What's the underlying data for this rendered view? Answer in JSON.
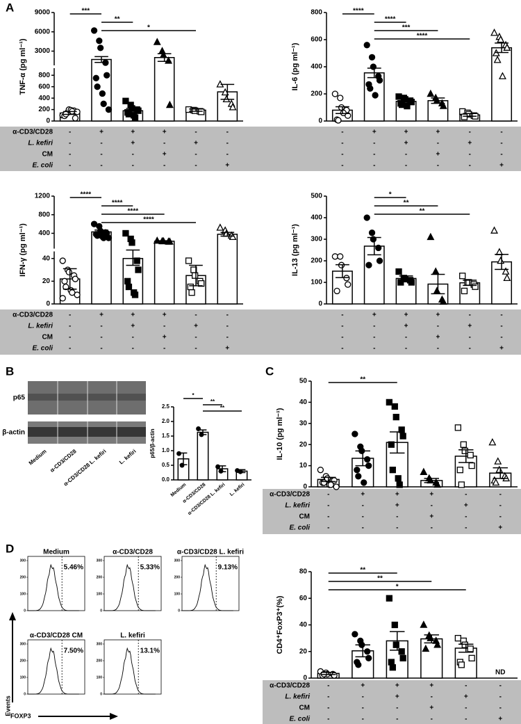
{
  "panel_labels": [
    "A",
    "B",
    "C",
    "D"
  ],
  "condition_rows": [
    {
      "label": "α-CD3/CD28",
      "signs": [
        "-",
        "+",
        "+",
        "+",
        "-",
        "-"
      ]
    },
    {
      "label": "L. kefiri",
      "signs": [
        "-",
        "-",
        "+",
        "-",
        "+",
        "-"
      ]
    },
    {
      "label": "CM",
      "signs": [
        "-",
        "-",
        "-",
        "+",
        "-",
        "-"
      ]
    },
    {
      "label": "E. coli",
      "signs": [
        "-",
        "-",
        "-",
        "-",
        "-",
        "+"
      ]
    }
  ],
  "blot": {
    "rows": [
      "p65",
      "β-actin"
    ],
    "lanes": [
      "Medium",
      "α-CD3/CD28",
      "α-CD3/CD28 L. kefiri",
      "L. kefiri"
    ]
  },
  "flow": {
    "panels": [
      {
        "title": "Medium",
        "percent": "5.46%"
      },
      {
        "title": "α-CD3/CD28",
        "percent": "5.33%"
      },
      {
        "title": "α-CD3/CD28 L. kefiri",
        "percent": "9.13%"
      },
      {
        "title": "α-CD3/CD28 CM",
        "percent": "7.50%"
      },
      {
        "title": "L. kefiri",
        "percent": "13.1%"
      }
    ],
    "yticks": [
      0,
      100,
      200,
      300
    ],
    "y_label": "Events",
    "x_label": "FOXP3"
  },
  "chart_data": [
    {
      "type": "bar",
      "y_label": "TNF-α (pg ml⁻¹)",
      "categories": [
        null,
        null,
        null,
        null,
        null,
        null
      ],
      "ylim": [
        0,
        9000
      ],
      "ysegments": [
        [
          0,
          900
        ],
        [
          1000,
          9000
        ]
      ],
      "yticks": [
        0,
        200,
        400,
        600,
        800,
        3000,
        6000,
        9000
      ],
      "means": [
        140,
        1700,
        180,
        2000,
        190,
        510
      ],
      "errors": [
        25,
        450,
        40,
        600,
        20,
        130
      ],
      "points": [
        [
          100,
          150,
          200,
          180,
          50,
          90,
          120,
          190,
          170,
          160
        ],
        [
          6200,
          4600,
          3500,
          1200,
          800,
          750,
          600,
          480,
          300,
          200
        ],
        [
          350,
          280,
          220,
          200,
          180,
          150,
          120,
          100,
          60
        ],
        [
          4400,
          3000,
          2400,
          1500,
          280
        ],
        [
          200,
          190,
          180,
          170,
          160
        ],
        [
          640,
          500,
          380,
          300,
          240
        ]
      ],
      "markers": [
        "open-circle",
        "circle",
        "square",
        "triangle",
        "open-square",
        "open-triangle"
      ],
      "significance": [
        {
          "from": 0,
          "to": 1,
          "label": "***"
        },
        {
          "from": 1,
          "to": 2,
          "label": "**"
        },
        {
          "from": 1,
          "to": 4,
          "label": "*"
        }
      ]
    },
    {
      "type": "bar",
      "y_label": "IL-6 (pg ml⁻¹)",
      "categories": [
        null,
        null,
        null,
        null,
        null,
        null
      ],
      "ylim": [
        0,
        800
      ],
      "yticks": [
        0,
        200,
        400,
        600,
        800
      ],
      "means": [
        80,
        355,
        145,
        150,
        45,
        540
      ],
      "errors": [
        25,
        35,
        15,
        20,
        10,
        35
      ],
      "points": [
        [
          200,
          170,
          100,
          80,
          40,
          10,
          5,
          60
        ],
        [
          560,
          470,
          400,
          330,
          300,
          270,
          240,
          190
        ],
        [
          180,
          170,
          160,
          150,
          140,
          130,
          120,
          110
        ],
        [
          200,
          170,
          150,
          130,
          110
        ],
        [
          70,
          60,
          50,
          40,
          35,
          30
        ],
        [
          650,
          620,
          600,
          560,
          540,
          500,
          450,
          330
        ]
      ],
      "markers": [
        "open-circle",
        "circle",
        "square",
        "triangle",
        "open-square",
        "open-triangle"
      ],
      "significance": [
        {
          "from": 0,
          "to": 1,
          "label": "****"
        },
        {
          "from": 1,
          "to": 2,
          "label": "****"
        },
        {
          "from": 1,
          "to": 3,
          "label": "***"
        },
        {
          "from": 1,
          "to": 4,
          "label": "****"
        }
      ]
    },
    {
      "type": "bar",
      "y_label": "IFN-γ (pg ml⁻¹)",
      "categories": [
        null,
        null,
        null,
        null,
        null,
        null
      ],
      "ylim": [
        0,
        1200
      ],
      "ysegments": [
        [
          0,
          45
        ],
        [
          100,
          1200
        ]
      ],
      "yticks": [
        0,
        20,
        40,
        400,
        800,
        1200
      ],
      "means": [
        22,
        430,
        40,
        230,
        25,
        380
      ],
      "errors": [
        9,
        40,
        6,
        10,
        9,
        40
      ],
      "points": [
        [
          38,
          30,
          28,
          25,
          22,
          20,
          15,
          12,
          10,
          8,
          5
        ],
        [
          600,
          550,
          450,
          420,
          400,
          380,
          350,
          330,
          300,
          300
        ],
        [
          400,
          280,
          200,
          38,
          30,
          20,
          15,
          10,
          8
        ],
        [
          240,
          230,
          230,
          220,
          220
        ],
        [
          38,
          30,
          25,
          20,
          18,
          15,
          10
        ],
        [
          520,
          460,
          390,
          350,
          320
        ]
      ],
      "markers": [
        "open-circle",
        "circle",
        "square",
        "triangle",
        "open-square",
        "open-triangle"
      ],
      "significance": [
        {
          "from": 0,
          "to": 1,
          "label": "****"
        },
        {
          "from": 1,
          "to": 2,
          "label": "****"
        },
        {
          "from": 1,
          "to": 3,
          "label": "****"
        },
        {
          "from": 1,
          "to": 4,
          "label": "****"
        }
      ]
    },
    {
      "type": "bar",
      "y_label": "IL-13 (pg ml⁻¹)",
      "categories": [
        null,
        null,
        null,
        null,
        null,
        null
      ],
      "ylim": [
        0,
        500
      ],
      "yticks": [
        0,
        100,
        200,
        300,
        400,
        500
      ],
      "means": [
        152,
        268,
        118,
        92,
        98,
        195
      ],
      "errors": [
        30,
        40,
        12,
        45,
        12,
        35
      ],
      "points": [
        [
          220,
          220,
          180,
          120,
          90,
          60
        ],
        [
          400,
          330,
          300,
          260,
          200,
          180
        ],
        [
          150,
          120,
          115,
          110,
          100,
          100
        ],
        [
          310,
          150,
          60,
          20,
          10
        ],
        [
          130,
          100,
          100,
          90,
          80,
          60
        ],
        [
          340,
          240,
          200,
          150,
          120
        ]
      ],
      "markers": [
        "open-circle",
        "circle",
        "square",
        "triangle",
        "open-square",
        "open-triangle"
      ],
      "significance": [
        {
          "from": 1,
          "to": 2,
          "label": "*"
        },
        {
          "from": 1,
          "to": 3,
          "label": "**"
        },
        {
          "from": 1,
          "to": 4,
          "label": "**"
        }
      ]
    },
    {
      "type": "bar",
      "y_label": "p65/β-actin",
      "categories": [
        "Medium",
        "α-CD3/CD28",
        "α-CD3/CD28 L. kefiri",
        "L. kefiri"
      ],
      "ylim": [
        0,
        2.5
      ],
      "yticks": [
        {
          "value": 0,
          "label": "0.0"
        },
        0.5,
        {
          "value": 1,
          "label": "1.0"
        },
        1.5,
        {
          "value": 2,
          "label": "2.0"
        },
        2.5
      ],
      "means": [
        0.72,
        1.63,
        0.38,
        0.3
      ],
      "errors": [
        0.2,
        0.08,
        0.1,
        0.05
      ],
      "points": [
        [
          0.9,
          0.5
        ],
        [
          1.75,
          1.55
        ],
        [
          0.45,
          0.3
        ],
        [
          0.32,
          0.28
        ]
      ],
      "markers": [
        "circle",
        "circle",
        "circle",
        "circle"
      ],
      "significance": [
        {
          "from": 0,
          "to": 1,
          "label": "*"
        },
        {
          "from": 1,
          "to": 2,
          "label": "**"
        },
        {
          "from": 1,
          "to": 3,
          "label": "**"
        }
      ]
    },
    {
      "type": "bar",
      "y_label": "IL-10 (pg ml⁻¹)",
      "categories": [
        null,
        null,
        null,
        null,
        null,
        null
      ],
      "ylim": [
        0,
        50
      ],
      "yticks": [
        0,
        10,
        20,
        30,
        40,
        50
      ],
      "means": [
        3.5,
        13.5,
        21,
        3,
        14.5,
        6.5
      ],
      "errors": [
        1,
        3.5,
        5,
        1,
        3,
        2.5
      ],
      "points": [
        [
          8,
          5,
          4,
          3,
          3,
          2,
          2,
          1,
          1,
          0
        ],
        [
          25,
          19,
          17,
          13,
          10,
          8,
          5,
          2
        ],
        [
          40,
          38,
          33,
          27,
          24,
          20,
          8,
          4,
          1
        ],
        [
          7,
          4,
          3,
          2,
          1
        ],
        [
          28,
          20,
          17,
          15,
          10,
          8,
          1
        ],
        [
          21,
          12,
          8,
          5,
          4,
          3,
          2
        ]
      ],
      "markers": [
        "open-circle",
        "circle",
        "square",
        "triangle",
        "open-square",
        "open-triangle"
      ],
      "significance": [
        {
          "from": 0,
          "to": 2,
          "label": "**"
        }
      ]
    },
    {
      "type": "bar",
      "y_label": "CD4⁺FoxP3⁺(%)",
      "categories": [
        null,
        null,
        null,
        null,
        null,
        null
      ],
      "ylim": [
        0,
        80
      ],
      "yticks": [
        0,
        20,
        40,
        60,
        80
      ],
      "means": [
        3.5,
        20.5,
        28,
        29.5,
        22.5,
        null
      ],
      "errors": [
        0.8,
        4.5,
        7,
        3,
        3,
        null
      ],
      "points": [
        [
          5,
          4,
          3,
          3,
          2,
          2,
          3
        ],
        [
          33,
          28,
          25,
          20,
          15,
          12,
          10
        ],
        [
          60,
          40,
          25,
          20,
          15,
          12,
          8
        ],
        [
          40,
          32,
          30,
          28,
          25,
          22
        ],
        [
          30,
          28,
          25,
          22,
          15,
          12,
          10
        ],
        []
      ],
      "markers": [
        "open-circle",
        "circle",
        "square",
        "triangle",
        "open-square",
        "open-triangle"
      ],
      "annotations": [
        {
          "text": "ND",
          "group": 5
        }
      ],
      "significance": [
        {
          "from": 0,
          "to": 2,
          "label": "**"
        },
        {
          "from": 0,
          "to": 3,
          "label": "**"
        },
        {
          "from": 0,
          "to": 4,
          "label": "*"
        }
      ]
    }
  ]
}
